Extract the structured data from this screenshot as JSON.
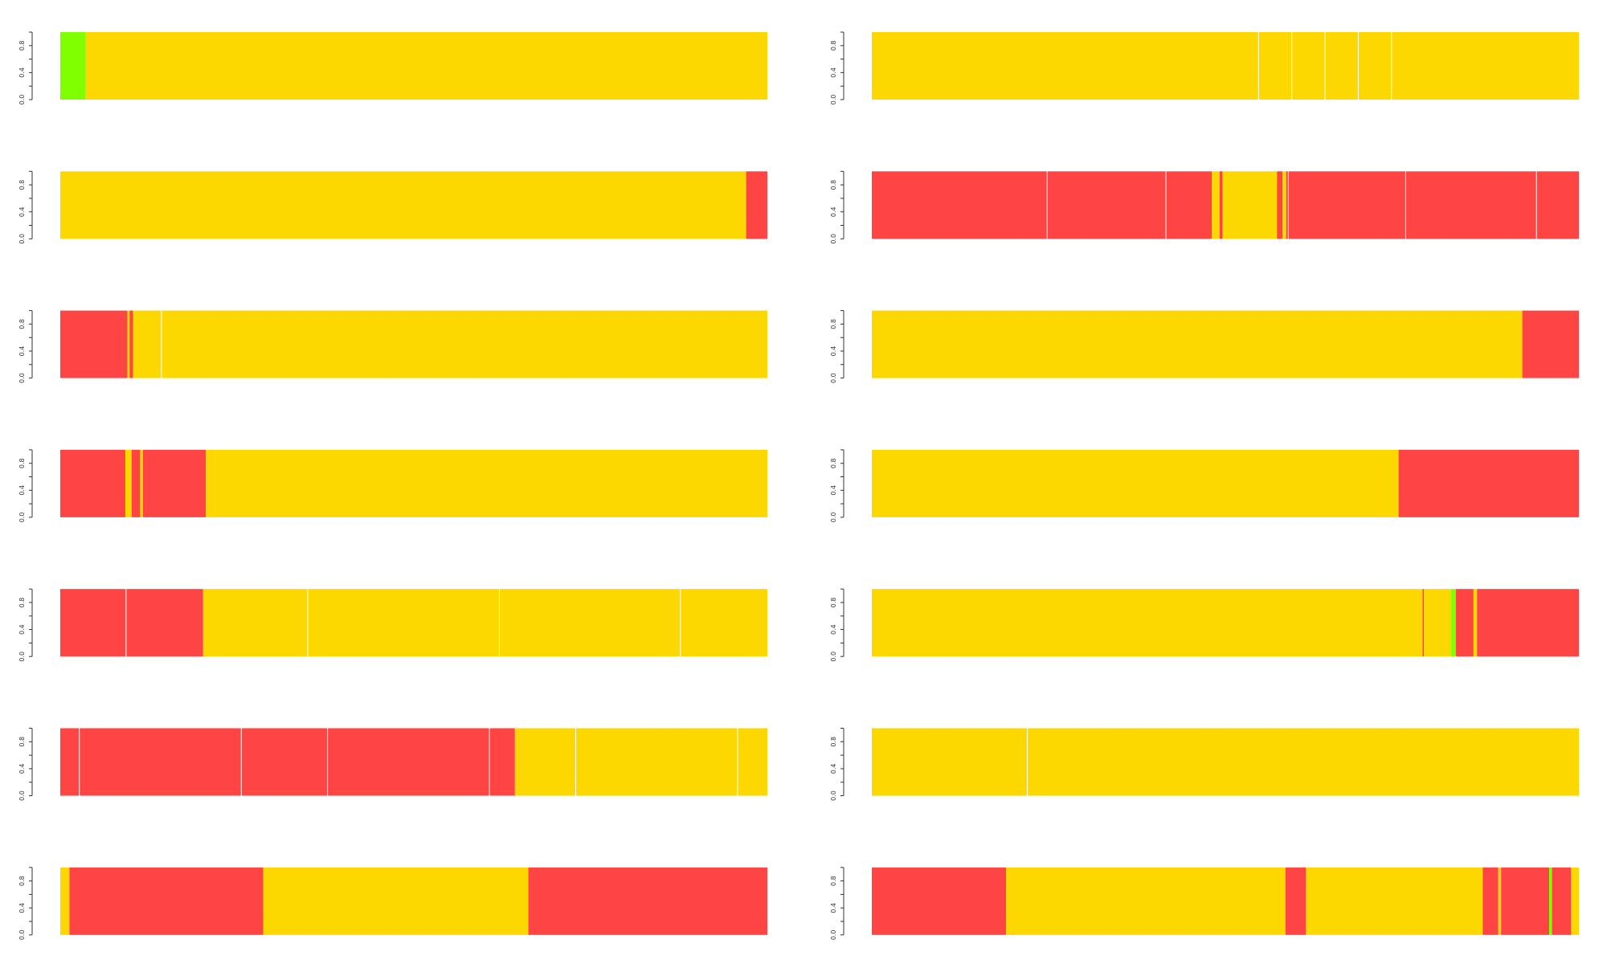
{
  "colors": {
    "red": "#ff4444",
    "yellow": "#fdd700",
    "green": "#80ff00",
    "divider": "#ffffff",
    "background": "#ffffff",
    "axis": "#333333"
  },
  "chart_data": {
    "type": "bar",
    "layout": "7 rows x 2 columns grid of full-width stacked strips",
    "ylim": [
      0,
      1
    ],
    "yticks": [
      "0.0",
      "0.4",
      "0.8"
    ],
    "grid": false,
    "legend": "none",
    "panels": [
      {
        "id": "r1c1",
        "xlim": [
          0,
          100
        ],
        "segments": [
          {
            "start": 0,
            "end": 3.6,
            "color": "green"
          },
          {
            "start": 3.6,
            "end": 100,
            "color": "yellow"
          }
        ],
        "dividers": []
      },
      {
        "id": "r1c2",
        "xlim": [
          0,
          100
        ],
        "segments": [
          {
            "start": 0,
            "end": 100,
            "color": "yellow"
          }
        ],
        "dividers": [
          54.7,
          59.4,
          64.1,
          68.8,
          73.5
        ]
      },
      {
        "id": "r2c1",
        "xlim": [
          0,
          100
        ],
        "segments": [
          {
            "start": 0,
            "end": 97.0,
            "color": "yellow"
          },
          {
            "start": 97.0,
            "end": 100,
            "color": "red"
          }
        ],
        "dividers": []
      },
      {
        "id": "r2c2",
        "xlim": [
          0,
          100
        ],
        "segments": [
          {
            "start": 0,
            "end": 48.1,
            "color": "red"
          },
          {
            "start": 48.1,
            "end": 49.2,
            "color": "yellow"
          },
          {
            "start": 49.2,
            "end": 49.6,
            "color": "red"
          },
          {
            "start": 49.6,
            "end": 57.3,
            "color": "yellow"
          },
          {
            "start": 57.3,
            "end": 58.1,
            "color": "red"
          },
          {
            "start": 58.1,
            "end": 58.6,
            "color": "yellow"
          },
          {
            "start": 58.6,
            "end": 100,
            "color": "red"
          }
        ],
        "dividers": [
          24.8,
          41.6,
          58.9,
          75.5,
          94.0
        ]
      },
      {
        "id": "r3c1",
        "xlim": [
          0,
          100
        ],
        "segments": [
          {
            "start": 0,
            "end": 9.5,
            "color": "red"
          },
          {
            "start": 9.5,
            "end": 9.8,
            "color": "yellow"
          },
          {
            "start": 9.8,
            "end": 10.3,
            "color": "red"
          },
          {
            "start": 10.3,
            "end": 100,
            "color": "yellow"
          }
        ],
        "dividers": [
          14.3
        ]
      },
      {
        "id": "r3c2",
        "xlim": [
          0,
          100
        ],
        "segments": [
          {
            "start": 0,
            "end": 92.0,
            "color": "yellow"
          },
          {
            "start": 92.0,
            "end": 100,
            "color": "red"
          }
        ],
        "dividers": []
      },
      {
        "id": "r4c1",
        "xlim": [
          0,
          100
        ],
        "segments": [
          {
            "start": 0,
            "end": 9.2,
            "color": "red"
          },
          {
            "start": 9.2,
            "end": 10.1,
            "color": "yellow"
          },
          {
            "start": 10.1,
            "end": 11.3,
            "color": "red"
          },
          {
            "start": 11.3,
            "end": 11.7,
            "color": "yellow"
          },
          {
            "start": 11.7,
            "end": 20.6,
            "color": "red"
          },
          {
            "start": 20.6,
            "end": 100,
            "color": "yellow"
          }
        ],
        "dividers": []
      },
      {
        "id": "r4c2",
        "xlim": [
          0,
          100
        ],
        "segments": [
          {
            "start": 0,
            "end": 74.5,
            "color": "yellow"
          },
          {
            "start": 74.5,
            "end": 100,
            "color": "red"
          }
        ],
        "dividers": []
      },
      {
        "id": "r5c1",
        "xlim": [
          0,
          100
        ],
        "segments": [
          {
            "start": 0,
            "end": 20.2,
            "color": "red"
          },
          {
            "start": 20.2,
            "end": 100,
            "color": "yellow"
          }
        ],
        "dividers": [
          9.3,
          35.0,
          62.1,
          87.7
        ]
      },
      {
        "id": "r5c2",
        "xlim": [
          0,
          100
        ],
        "segments": [
          {
            "start": 0,
            "end": 77.9,
            "color": "yellow"
          },
          {
            "start": 77.9,
            "end": 78.1,
            "color": "red"
          },
          {
            "start": 78.1,
            "end": 81.9,
            "color": "yellow"
          },
          {
            "start": 81.9,
            "end": 82.6,
            "color": "green"
          },
          {
            "start": 82.6,
            "end": 85.1,
            "color": "red"
          },
          {
            "start": 85.1,
            "end": 85.6,
            "color": "yellow"
          },
          {
            "start": 85.6,
            "end": 100,
            "color": "red"
          }
        ],
        "dividers": []
      },
      {
        "id": "r6c1",
        "xlim": [
          0,
          100
        ],
        "segments": [
          {
            "start": 0,
            "end": 64.3,
            "color": "red"
          },
          {
            "start": 64.3,
            "end": 100,
            "color": "yellow"
          }
        ],
        "dividers": [
          2.7,
          25.6,
          37.8,
          60.7,
          72.9,
          95.8
        ]
      },
      {
        "id": "r6c2",
        "xlim": [
          0,
          100
        ],
        "segments": [
          {
            "start": 0,
            "end": 100,
            "color": "yellow"
          }
        ],
        "dividers": [
          22.0
        ]
      },
      {
        "id": "r7c1",
        "xlim": [
          0,
          100
        ],
        "segments": [
          {
            "start": 0,
            "end": 1.3,
            "color": "yellow"
          },
          {
            "start": 1.3,
            "end": 28.7,
            "color": "red"
          },
          {
            "start": 28.7,
            "end": 66.2,
            "color": "yellow"
          },
          {
            "start": 66.2,
            "end": 100,
            "color": "red"
          }
        ],
        "dividers": []
      },
      {
        "id": "r7c2",
        "xlim": [
          0,
          100
        ],
        "segments": [
          {
            "start": 0,
            "end": 19.0,
            "color": "red"
          },
          {
            "start": 19.0,
            "end": 58.5,
            "color": "yellow"
          },
          {
            "start": 58.5,
            "end": 61.4,
            "color": "red"
          },
          {
            "start": 61.4,
            "end": 86.4,
            "color": "yellow"
          },
          {
            "start": 86.4,
            "end": 88.6,
            "color": "red"
          },
          {
            "start": 88.6,
            "end": 89.0,
            "color": "yellow"
          },
          {
            "start": 89.0,
            "end": 95.8,
            "color": "red"
          },
          {
            "start": 95.8,
            "end": 96.2,
            "color": "green"
          },
          {
            "start": 96.2,
            "end": 98.9,
            "color": "red"
          },
          {
            "start": 98.9,
            "end": 100,
            "color": "yellow"
          }
        ],
        "dividers": []
      }
    ]
  }
}
